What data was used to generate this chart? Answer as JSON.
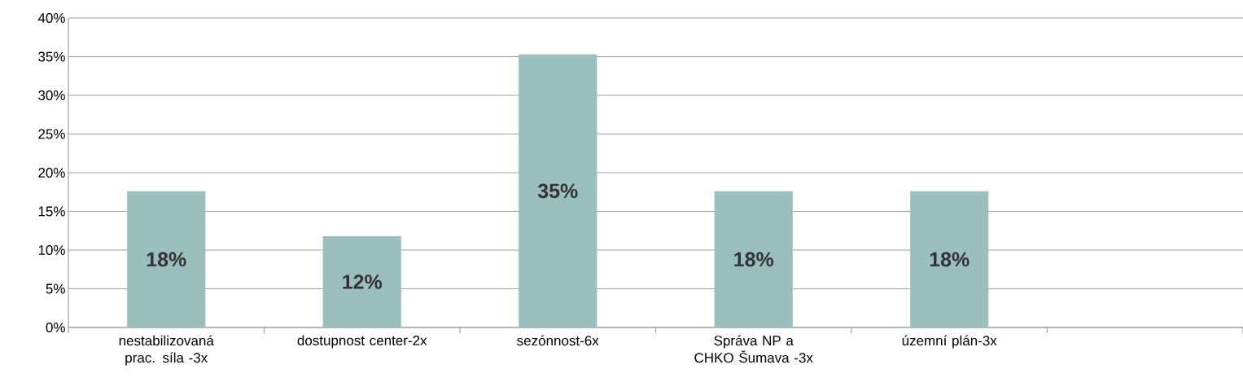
{
  "chart_data": {
    "type": "bar",
    "categories": [
      "nestabilizovaná prac. síla -3x",
      "dostupnost center-2x",
      "sezónnost-6x",
      "Správa NP a CHKO Šumava -3x",
      "územní plán-3x",
      null
    ],
    "values": [
      17.6,
      11.8,
      35.3,
      17.6,
      17.6,
      null
    ],
    "value_labels": [
      "18%",
      "12%",
      "35%",
      "18%",
      "18%",
      null
    ],
    "color": "#9bbfbd",
    "ylim": [
      0,
      40
    ],
    "yticks": [
      {
        "value": 0,
        "label": "0%"
      },
      {
        "value": 5,
        "label": "5%"
      },
      {
        "value": 10,
        "label": "10%"
      },
      {
        "value": 15,
        "label": "15%"
      },
      {
        "value": 20,
        "label": "20%"
      },
      {
        "value": 25,
        "label": "25%"
      },
      {
        "value": 30,
        "label": "30%"
      },
      {
        "value": 35,
        "label": "35%"
      },
      {
        "value": 40,
        "label": "40%"
      }
    ],
    "grid": "y"
  }
}
